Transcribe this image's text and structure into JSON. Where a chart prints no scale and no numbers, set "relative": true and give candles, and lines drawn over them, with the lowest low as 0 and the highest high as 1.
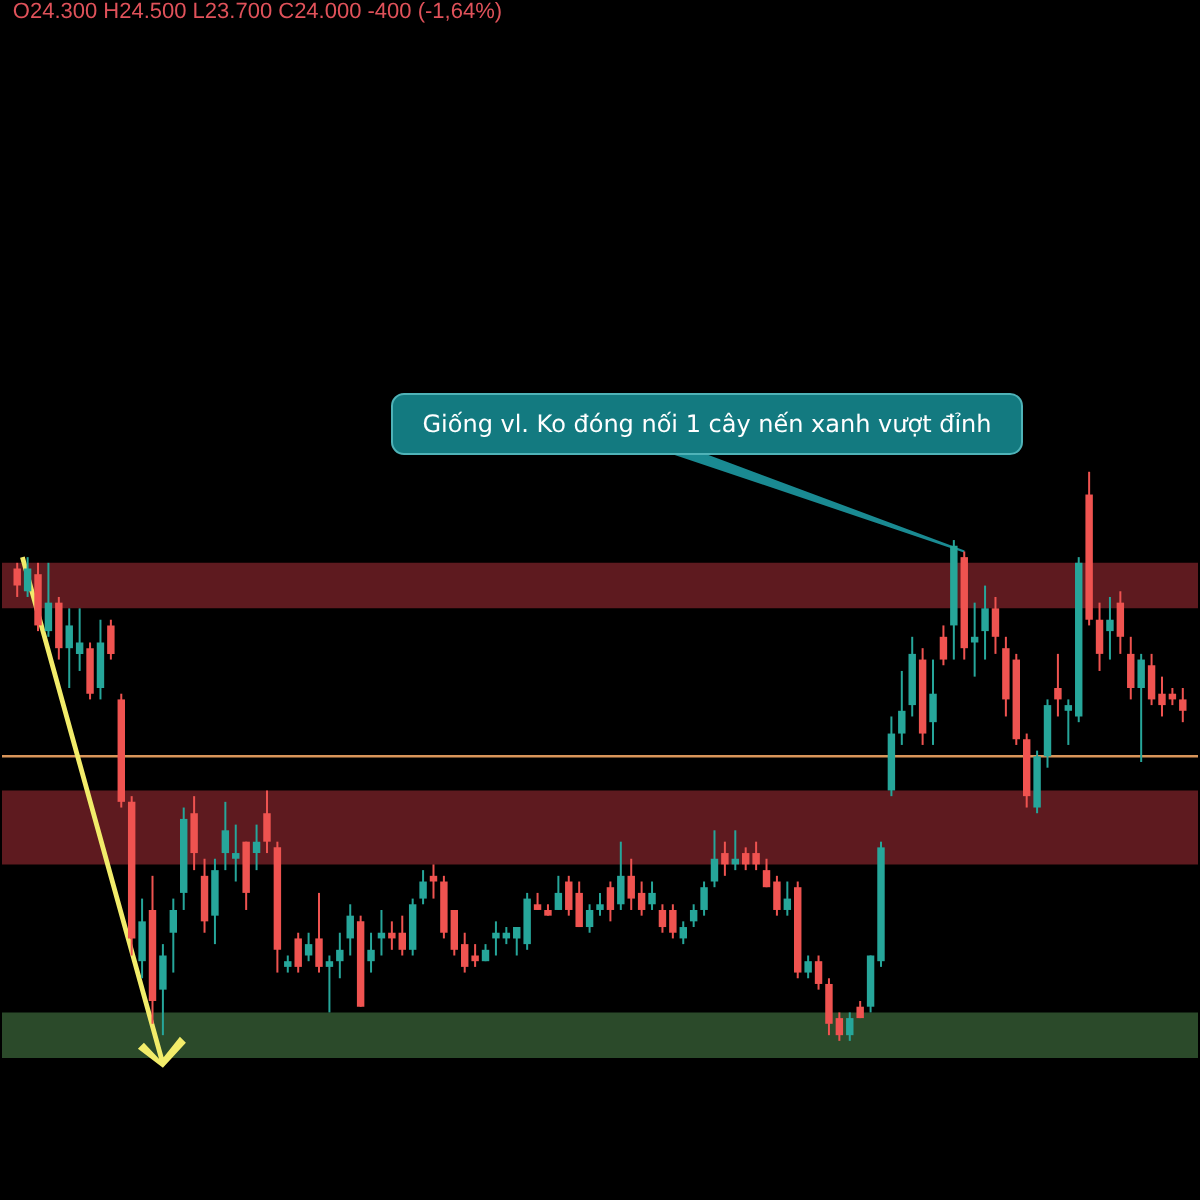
{
  "chart_data": {
    "type": "candlestick",
    "relative": true,
    "title": "O24.300 H24.500 L23.700 C24.000 -400 (-1,64%)",
    "annotations": [
      "Giống vl. Ko đóng nối 1 cây nến xanh vượt đỉnh"
    ],
    "categories": [
      null,
      null,
      null,
      null,
      null,
      null,
      null,
      null,
      null,
      null,
      null,
      null,
      null,
      null,
      null,
      null,
      null,
      null,
      null,
      null,
      null,
      null,
      null,
      null,
      null,
      null,
      null,
      null,
      null,
      null,
      null,
      null,
      null,
      null,
      null,
      null,
      null,
      null,
      null,
      null,
      null,
      null,
      null,
      null,
      null,
      null,
      null,
      null,
      null,
      null,
      null,
      null,
      null,
      null,
      null,
      null,
      null,
      null,
      null,
      null,
      null,
      null,
      null,
      null,
      null,
      null,
      null,
      null,
      null,
      null,
      null,
      null,
      null,
      null,
      null,
      null,
      null,
      null,
      null,
      null,
      null,
      null,
      null,
      null,
      null,
      null,
      null,
      null,
      null,
      null,
      null,
      null,
      null,
      null,
      null,
      null,
      null,
      null,
      null,
      null,
      null,
      null,
      null,
      null,
      null,
      null,
      null,
      null,
      null,
      null,
      null,
      null,
      null
    ],
    "ohlc": [
      [
        0.83,
        0.84,
        0.78,
        0.8
      ],
      [
        0.79,
        0.85,
        0.78,
        0.83
      ],
      [
        0.82,
        0.84,
        0.72,
        0.73
      ],
      [
        0.72,
        0.84,
        0.71,
        0.77
      ],
      [
        0.77,
        0.78,
        0.67,
        0.69
      ],
      [
        0.69,
        0.76,
        0.62,
        0.73
      ],
      [
        0.68,
        0.76,
        0.65,
        0.7
      ],
      [
        0.69,
        0.7,
        0.6,
        0.61
      ],
      [
        0.62,
        0.74,
        0.6,
        0.7
      ],
      [
        0.73,
        0.74,
        0.67,
        0.68
      ],
      [
        0.6,
        0.61,
        0.41,
        0.42
      ],
      [
        0.42,
        0.43,
        0.15,
        0.18
      ],
      [
        0.14,
        0.25,
        0.11,
        0.21
      ],
      [
        0.23,
        0.29,
        0.03,
        0.07
      ],
      [
        0.09,
        0.17,
        0.01,
        0.15
      ],
      [
        0.19,
        0.25,
        0.12,
        0.23
      ],
      [
        0.26,
        0.41,
        0.23,
        0.39
      ],
      [
        0.4,
        0.43,
        0.3,
        0.33
      ],
      [
        0.29,
        0.32,
        0.19,
        0.21
      ],
      [
        0.22,
        0.32,
        0.17,
        0.3
      ],
      [
        0.33,
        0.42,
        0.3,
        0.37
      ],
      [
        0.32,
        0.38,
        0.28,
        0.33
      ],
      [
        0.35,
        0.35,
        0.23,
        0.26
      ],
      [
        0.33,
        0.38,
        0.3,
        0.35
      ],
      [
        0.4,
        0.44,
        0.33,
        0.35
      ],
      [
        0.34,
        0.35,
        0.12,
        0.16
      ],
      [
        0.13,
        0.15,
        0.12,
        0.14
      ],
      [
        0.18,
        0.19,
        0.12,
        0.13
      ],
      [
        0.15,
        0.19,
        0.14,
        0.17
      ],
      [
        0.18,
        0.26,
        0.12,
        0.13
      ],
      [
        0.13,
        0.15,
        0.05,
        0.14
      ],
      [
        0.14,
        0.19,
        0.11,
        0.16
      ],
      [
        0.18,
        0.24,
        0.15,
        0.22
      ],
      [
        0.21,
        0.22,
        0.06,
        0.06
      ],
      [
        0.14,
        0.19,
        0.12,
        0.16
      ],
      [
        0.18,
        0.23,
        0.15,
        0.19
      ],
      [
        0.19,
        0.21,
        0.16,
        0.18
      ],
      [
        0.19,
        0.22,
        0.15,
        0.16
      ],
      [
        0.16,
        0.25,
        0.15,
        0.24
      ],
      [
        0.25,
        0.3,
        0.24,
        0.28
      ],
      [
        0.29,
        0.31,
        0.25,
        0.28
      ],
      [
        0.28,
        0.29,
        0.18,
        0.19
      ],
      [
        0.23,
        0.23,
        0.15,
        0.16
      ],
      [
        0.17,
        0.19,
        0.12,
        0.13
      ],
      [
        0.15,
        0.17,
        0.13,
        0.14
      ],
      [
        0.14,
        0.17,
        0.14,
        0.16
      ],
      [
        0.18,
        0.21,
        0.15,
        0.19
      ],
      [
        0.18,
        0.2,
        0.17,
        0.19
      ],
      [
        0.18,
        0.2,
        0.15,
        0.2
      ],
      [
        0.17,
        0.26,
        0.16,
        0.25
      ],
      [
        0.24,
        0.26,
        0.23,
        0.23
      ],
      [
        0.23,
        0.24,
        0.22,
        0.22
      ],
      [
        0.23,
        0.29,
        0.23,
        0.26
      ],
      [
        0.28,
        0.29,
        0.22,
        0.23
      ],
      [
        0.26,
        0.28,
        0.2,
        0.2
      ],
      [
        0.2,
        0.24,
        0.19,
        0.23
      ],
      [
        0.23,
        0.26,
        0.22,
        0.24
      ],
      [
        0.27,
        0.28,
        0.21,
        0.23
      ],
      [
        0.24,
        0.35,
        0.23,
        0.29
      ],
      [
        0.29,
        0.32,
        0.23,
        0.25
      ],
      [
        0.26,
        0.28,
        0.22,
        0.23
      ],
      [
        0.24,
        0.28,
        0.23,
        0.26
      ],
      [
        0.23,
        0.24,
        0.19,
        0.2
      ],
      [
        0.23,
        0.24,
        0.18,
        0.19
      ],
      [
        0.18,
        0.21,
        0.17,
        0.2
      ],
      [
        0.21,
        0.24,
        0.2,
        0.23
      ],
      [
        0.23,
        0.28,
        0.22,
        0.27
      ],
      [
        0.28,
        0.37,
        0.27,
        0.32
      ],
      [
        0.33,
        0.35,
        0.29,
        0.31
      ],
      [
        0.31,
        0.37,
        0.3,
        0.32
      ],
      [
        0.33,
        0.34,
        0.3,
        0.31
      ],
      [
        0.33,
        0.35,
        0.3,
        0.31
      ],
      [
        0.3,
        0.32,
        0.27,
        0.27
      ],
      [
        0.28,
        0.29,
        0.22,
        0.23
      ],
      [
        0.23,
        0.28,
        0.22,
        0.25
      ],
      [
        0.27,
        0.28,
        0.11,
        0.12
      ],
      [
        0.12,
        0.15,
        0.11,
        0.14
      ],
      [
        0.14,
        0.15,
        0.09,
        0.1
      ],
      [
        0.1,
        0.11,
        0.01,
        0.03
      ],
      [
        0.04,
        0.05,
        0.0,
        0.01
      ],
      [
        0.01,
        0.05,
        0.0,
        0.04
      ],
      [
        0.06,
        0.07,
        0.04,
        0.04
      ],
      [
        0.06,
        0.15,
        0.05,
        0.15
      ],
      [
        0.14,
        0.35,
        0.13,
        0.34
      ],
      [
        0.44,
        0.57,
        0.43,
        0.54
      ],
      [
        0.54,
        0.65,
        0.52,
        0.58
      ],
      [
        0.59,
        0.71,
        0.57,
        0.68
      ],
      [
        0.67,
        0.69,
        0.52,
        0.54
      ],
      [
        0.56,
        0.67,
        0.52,
        0.61
      ],
      [
        0.71,
        0.73,
        0.66,
        0.67
      ],
      [
        0.73,
        0.88,
        0.67,
        0.87
      ],
      [
        0.85,
        0.86,
        0.67,
        0.69
      ],
      [
        0.7,
        0.77,
        0.64,
        0.71
      ],
      [
        0.72,
        0.8,
        0.67,
        0.76
      ],
      [
        0.76,
        0.78,
        0.68,
        0.71
      ],
      [
        0.69,
        0.71,
        0.57,
        0.6
      ],
      [
        0.67,
        0.68,
        0.52,
        0.53
      ],
      [
        0.53,
        0.54,
        0.41,
        0.43
      ],
      [
        0.41,
        0.51,
        0.4,
        0.5
      ],
      [
        0.5,
        0.6,
        0.48,
        0.59
      ],
      [
        0.62,
        0.68,
        0.57,
        0.6
      ],
      [
        0.58,
        0.6,
        0.52,
        0.59
      ],
      [
        0.57,
        0.85,
        0.56,
        0.84
      ],
      [
        0.96,
        1.0,
        0.73,
        0.74
      ],
      [
        0.74,
        0.77,
        0.65,
        0.68
      ],
      [
        0.72,
        0.78,
        0.67,
        0.74
      ],
      [
        0.77,
        0.79,
        0.68,
        0.71
      ],
      [
        0.68,
        0.71,
        0.6,
        0.62
      ],
      [
        0.62,
        0.68,
        0.49,
        0.67
      ],
      [
        0.66,
        0.68,
        0.59,
        0.6
      ],
      [
        0.61,
        0.64,
        0.57,
        0.59
      ],
      [
        0.61,
        0.62,
        0.59,
        0.6
      ],
      [
        0.6,
        0.62,
        0.56,
        0.58
      ]
    ],
    "bands": [
      {
        "axis": "y",
        "from": 0.76,
        "to": 0.84,
        "color": "#5e1a1f"
      },
      {
        "axis": "y",
        "from": 0.31,
        "to": 0.44,
        "color": "#5e1a1f"
      },
      {
        "axis": "y",
        "from": -0.03,
        "to": 0.05,
        "color": "#2b4a2a"
      }
    ],
    "ref_lines": [
      {
        "axis": "y",
        "value": 0.5,
        "color": "#d9955a"
      }
    ]
  }
}
